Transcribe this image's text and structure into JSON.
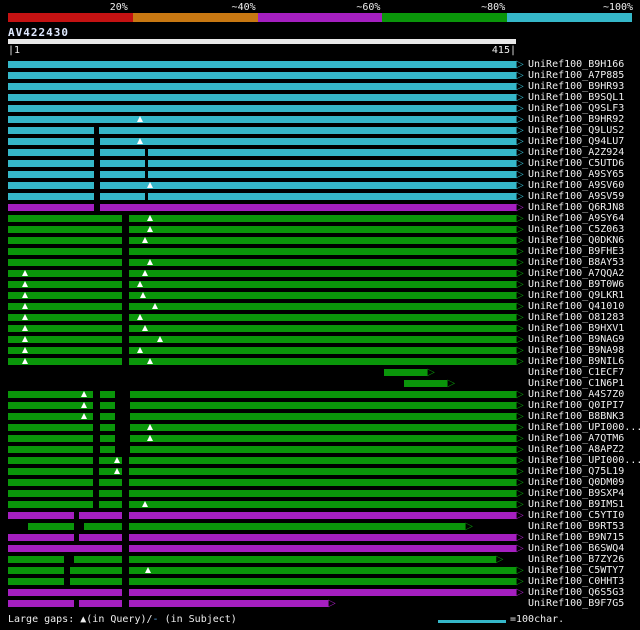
{
  "chart_data": {
    "type": "bar",
    "orientation": "horizontal",
    "title": "",
    "x_range": [
      1,
      415
    ],
    "grid": false,
    "arrow_glyph": "▷",
    "query": {
      "name": "AV422430",
      "length": 415,
      "ruler_start": "|1",
      "ruler_end": "415|"
    },
    "colors": {
      "cyan": "#35b7c9",
      "green": "#0a960a",
      "magenta": "#a51fc0",
      "red": "#c41212",
      "orange": "#c87812",
      "query_bar": "#e8e8e8",
      "subject_dash": "#5aa7e8"
    },
    "identity_legend": [
      {
        "label": "20%",
        "color": "#c41212"
      },
      {
        "label": "~40%",
        "color": "#c87812"
      },
      {
        "label": "~60%",
        "color": "#a51fc0"
      },
      {
        "label": "~80%",
        "color": "#0a960a"
      },
      {
        "label": "~100%",
        "color": "#35b7c9"
      }
    ],
    "hits": [
      {
        "id": "UniRef100_B9H166",
        "bin": "~100%",
        "color": "cyan",
        "start": 0,
        "end": 100,
        "gaps": [],
        "tris": []
      },
      {
        "id": "UniRef100_A7P885",
        "bin": "~100%",
        "color": "cyan",
        "start": 0,
        "end": 100,
        "gaps": [],
        "tris": []
      },
      {
        "id": "UniRef100_B9HR93",
        "bin": "~100%",
        "color": "cyan",
        "start": 0,
        "end": 100,
        "gaps": [],
        "tris": []
      },
      {
        "id": "UniRef100_B9SQL1",
        "bin": "~100%",
        "color": "cyan",
        "start": 0,
        "end": 100,
        "gaps": [],
        "tris": []
      },
      {
        "id": "UniRef100_Q9SLF3",
        "bin": "~100%",
        "color": "cyan",
        "start": 0,
        "end": 100,
        "gaps": [],
        "tris": []
      },
      {
        "id": "UniRef100_B9HR92",
        "bin": "~100%",
        "color": "cyan",
        "start": 0,
        "end": 100,
        "gaps": [],
        "tris": [
          26
        ]
      },
      {
        "id": "UniRef100_Q9LUS2",
        "bin": "~100%",
        "color": "cyan",
        "start": 0,
        "end": 100,
        "gaps": [
          [
            17,
            1.0
          ]
        ],
        "tris": []
      },
      {
        "id": "UniRef100_Q94LU7",
        "bin": "~100%",
        "color": "cyan",
        "start": 0,
        "end": 100,
        "gaps": [
          [
            17,
            1.2
          ]
        ],
        "tris": [
          26
        ]
      },
      {
        "id": "UniRef100_A2Z924",
        "bin": "~100%",
        "color": "cyan",
        "start": 0,
        "end": 100,
        "gaps": [
          [
            17,
            1.2
          ],
          [
            27,
            0.6
          ]
        ],
        "tris": []
      },
      {
        "id": "UniRef100_C5UTD6",
        "bin": "~100%",
        "color": "cyan",
        "start": 0,
        "end": 100,
        "gaps": [
          [
            17,
            1.2
          ],
          [
            27,
            0.6
          ]
        ],
        "tris": []
      },
      {
        "id": "UniRef100_A9SY65",
        "bin": "~100%",
        "color": "cyan",
        "start": 0,
        "end": 100,
        "gaps": [
          [
            17,
            1.2
          ],
          [
            27,
            0.6
          ]
        ],
        "tris": []
      },
      {
        "id": "UniRef100_A9SV60",
        "bin": "~100%",
        "color": "cyan",
        "start": 0,
        "end": 100,
        "gaps": [
          [
            17,
            1.2
          ]
        ],
        "tris": [
          28
        ]
      },
      {
        "id": "UniRef100_A9SV59",
        "bin": "~100%",
        "color": "cyan",
        "start": 0,
        "end": 100,
        "gaps": [
          [
            17,
            1.2
          ],
          [
            27,
            0.6
          ]
        ],
        "tris": []
      },
      {
        "id": "UniRef100_Q6RJN8",
        "bin": "~60%",
        "color": "magenta",
        "start": 0,
        "end": 100,
        "gaps": [
          [
            17,
            1.2
          ]
        ],
        "tris": []
      },
      {
        "id": "UniRef100_A9SY64",
        "bin": "~80%",
        "color": "green",
        "start": 0,
        "end": 100,
        "gaps": [
          [
            22.4,
            1.4
          ]
        ],
        "tris": [
          28
        ]
      },
      {
        "id": "UniRef100_C5Z063",
        "bin": "~80%",
        "color": "green",
        "start": 0,
        "end": 100,
        "gaps": [
          [
            22.4,
            1.4
          ]
        ],
        "tris": [
          28
        ]
      },
      {
        "id": "UniRef100_Q0DKN6",
        "bin": "~80%",
        "color": "green",
        "start": 0,
        "end": 100,
        "gaps": [
          [
            22.4,
            1.4
          ]
        ],
        "tris": [
          27
        ]
      },
      {
        "id": "UniRef100_B9FHE3",
        "bin": "~80%",
        "color": "green",
        "start": 0,
        "end": 100,
        "gaps": [
          [
            22.4,
            1.4
          ]
        ],
        "tris": []
      },
      {
        "id": "UniRef100_B8AY53",
        "bin": "~80%",
        "color": "green",
        "start": 0,
        "end": 100,
        "gaps": [
          [
            22.4,
            1.4
          ]
        ],
        "tris": [
          28
        ]
      },
      {
        "id": "UniRef100_A7QQA2",
        "bin": "~80%",
        "color": "green",
        "start": 0,
        "end": 100,
        "gaps": [
          [
            22.4,
            1.4
          ]
        ],
        "tris": [
          3.3,
          27
        ]
      },
      {
        "id": "UniRef100_B9T0W6",
        "bin": "~80%",
        "color": "green",
        "start": 0,
        "end": 100,
        "gaps": [
          [
            22.4,
            1.4
          ]
        ],
        "tris": [
          3.3,
          26
        ]
      },
      {
        "id": "UniRef100_Q9LKR1",
        "bin": "~80%",
        "color": "green",
        "start": 0,
        "end": 100,
        "gaps": [
          [
            22.4,
            1.4
          ]
        ],
        "tris": [
          3.3,
          26.5
        ]
      },
      {
        "id": "UniRef100_Q41010",
        "bin": "~80%",
        "color": "green",
        "start": 0,
        "end": 100,
        "gaps": [
          [
            22.4,
            1.4
          ]
        ],
        "tris": [
          3.3,
          29
        ]
      },
      {
        "id": "UniRef100_O81283",
        "bin": "~80%",
        "color": "green",
        "start": 0,
        "end": 100,
        "gaps": [
          [
            22.4,
            1.4
          ]
        ],
        "tris": [
          3.3,
          26
        ]
      },
      {
        "id": "UniRef100_B9HXV1",
        "bin": "~80%",
        "color": "green",
        "start": 0,
        "end": 100,
        "gaps": [
          [
            22.4,
            1.4
          ]
        ],
        "tris": [
          3.3,
          27
        ]
      },
      {
        "id": "UniRef100_B9NAG9",
        "bin": "~80%",
        "color": "green",
        "start": 0,
        "end": 100,
        "gaps": [
          [
            22.4,
            1.4
          ]
        ],
        "tris": [
          3.3,
          30
        ]
      },
      {
        "id": "UniRef100_B9NA98",
        "bin": "~80%",
        "color": "green",
        "start": 0,
        "end": 100,
        "gaps": [
          [
            22.4,
            1.4
          ]
        ],
        "tris": [
          3.3,
          26
        ]
      },
      {
        "id": "UniRef100_B9NIL6",
        "bin": "~80%",
        "color": "green",
        "start": 0,
        "end": 100,
        "gaps": [
          [
            22.4,
            1.4
          ]
        ],
        "tris": [
          3.3,
          28
        ]
      },
      {
        "id": "UniRef100_C1ECF7",
        "bin": "~80%",
        "color": "green",
        "start": 74,
        "end": 82.5,
        "gaps": [],
        "tris": []
      },
      {
        "id": "UniRef100_C1N6P1",
        "bin": "~80%",
        "color": "green",
        "start": 78,
        "end": 86.5,
        "gaps": [],
        "tris": []
      },
      {
        "id": "UniRef100_A4S7Z0",
        "bin": "~80%",
        "color": "green",
        "start": 0,
        "end": 100,
        "gaps": [
          [
            16.7,
            1.5
          ],
          [
            21,
            3
          ]
        ],
        "tris": [
          15
        ]
      },
      {
        "id": "UniRef100_Q0IPI7",
        "bin": "~80%",
        "color": "green",
        "start": 0,
        "end": 100,
        "gaps": [
          [
            16.7,
            1.5
          ],
          [
            21,
            3
          ]
        ],
        "tris": [
          15
        ]
      },
      {
        "id": "UniRef100_B8BNK3",
        "bin": "~80%",
        "color": "green",
        "start": 0,
        "end": 100,
        "gaps": [
          [
            16.7,
            1.5
          ],
          [
            21,
            3
          ]
        ],
        "tris": [
          15
        ]
      },
      {
        "id": "UniRef100_UPI000...",
        "bin": "~80%",
        "color": "green",
        "start": 0,
        "end": 100,
        "gaps": [
          [
            16.7,
            1.5
          ],
          [
            21,
            3
          ]
        ],
        "tris": [
          28
        ]
      },
      {
        "id": "UniRef100_A7QTM6",
        "bin": "~80%",
        "color": "green",
        "start": 0,
        "end": 100,
        "gaps": [
          [
            16.7,
            1.5
          ],
          [
            21,
            3
          ]
        ],
        "tris": [
          28
        ]
      },
      {
        "id": "UniRef100_A8APZ2",
        "bin": "~80%",
        "color": "green",
        "start": 0,
        "end": 100,
        "gaps": [
          [
            16.7,
            1.5
          ],
          [
            21,
            3
          ]
        ],
        "tris": []
      },
      {
        "id": "UniRef100_UPI000...",
        "bin": "~80%",
        "color": "green",
        "start": 0,
        "end": 100,
        "gaps": [
          [
            16.7,
            1.2
          ],
          [
            22.4,
            1.4
          ]
        ],
        "tris": [
          21.5
        ]
      },
      {
        "id": "UniRef100_Q75L19",
        "bin": "~80%",
        "color": "green",
        "start": 0,
        "end": 100,
        "gaps": [
          [
            16.7,
            1.2
          ],
          [
            22.4,
            1.4
          ]
        ],
        "tris": [
          21.5
        ]
      },
      {
        "id": "UniRef100_Q0DM09",
        "bin": "~80%",
        "color": "green",
        "start": 0,
        "end": 100,
        "gaps": [
          [
            16.7,
            1.2
          ],
          [
            22.4,
            1.4
          ]
        ],
        "tris": []
      },
      {
        "id": "UniRef100_B9SXP4",
        "bin": "~80%",
        "color": "green",
        "start": 0,
        "end": 100,
        "gaps": [
          [
            16.7,
            1.2
          ],
          [
            22.4,
            1.4
          ]
        ],
        "tris": []
      },
      {
        "id": "UniRef100_B9IMS1",
        "bin": "~80%",
        "color": "green",
        "start": 0,
        "end": 100,
        "gaps": [
          [
            16.7,
            1.2
          ],
          [
            22.4,
            1.4
          ]
        ],
        "tris": [
          27
        ]
      },
      {
        "id": "UniRef100_C5YTI0",
        "bin": "~60%",
        "color": "magenta",
        "start": 0,
        "end": 100,
        "gaps": [
          [
            13,
            1.0
          ],
          [
            22.4,
            1.4
          ]
        ],
        "tris": []
      },
      {
        "id": "UniRef100_B9RT53",
        "bin": "~80%",
        "color": "green",
        "start": 4,
        "end": 90,
        "gaps": [
          [
            13,
            2
          ],
          [
            22.4,
            1.4
          ]
        ],
        "tris": []
      },
      {
        "id": "UniRef100_B9N715",
        "bin": "~60%",
        "color": "magenta",
        "start": 0,
        "end": 100,
        "gaps": [
          [
            13,
            1.0
          ],
          [
            22.4,
            1.4
          ]
        ],
        "tris": []
      },
      {
        "id": "UniRef100_B6SWQ4",
        "bin": "~60%",
        "color": "magenta",
        "start": 0,
        "end": 100,
        "gaps": [
          [
            22.4,
            1.4
          ]
        ],
        "tris": []
      },
      {
        "id": "UniRef100_B7ZY26",
        "bin": "~80%",
        "color": "green",
        "start": 0,
        "end": 96,
        "gaps": [
          [
            11,
            2
          ],
          [
            22.4,
            1.4
          ]
        ],
        "tris": []
      },
      {
        "id": "UniRef100_C5WTY7",
        "bin": "~80%",
        "color": "green",
        "start": 0,
        "end": 100,
        "gaps": [
          [
            11,
            1.2
          ],
          [
            22.4,
            1.4
          ]
        ],
        "tris": [
          27.5
        ]
      },
      {
        "id": "UniRef100_C0HHT3",
        "bin": "~80%",
        "color": "green",
        "start": 0,
        "end": 100,
        "gaps": [
          [
            11,
            1.2
          ],
          [
            22.4,
            1.4
          ]
        ],
        "tris": []
      },
      {
        "id": "UniRef100_Q6S5G3",
        "bin": "~60%",
        "color": "magenta",
        "start": 0,
        "end": 100,
        "gaps": [
          [
            22.4,
            1.4
          ]
        ],
        "tris": []
      },
      {
        "id": "UniRef100_B9F7G5",
        "bin": "~60%",
        "color": "magenta",
        "start": 0,
        "end": 63,
        "gaps": [
          [
            13,
            1.0
          ],
          [
            22.4,
            1.4
          ]
        ],
        "tris": []
      }
    ],
    "footer": {
      "legend": {
        "prefix": "Large gaps: ",
        "query_gap_symbol": "▲",
        "mid": "(in Query)/",
        "subject_gap_symbol": "-",
        "suffix": " (in Subject)"
      },
      "caption": "=100char."
    }
  }
}
